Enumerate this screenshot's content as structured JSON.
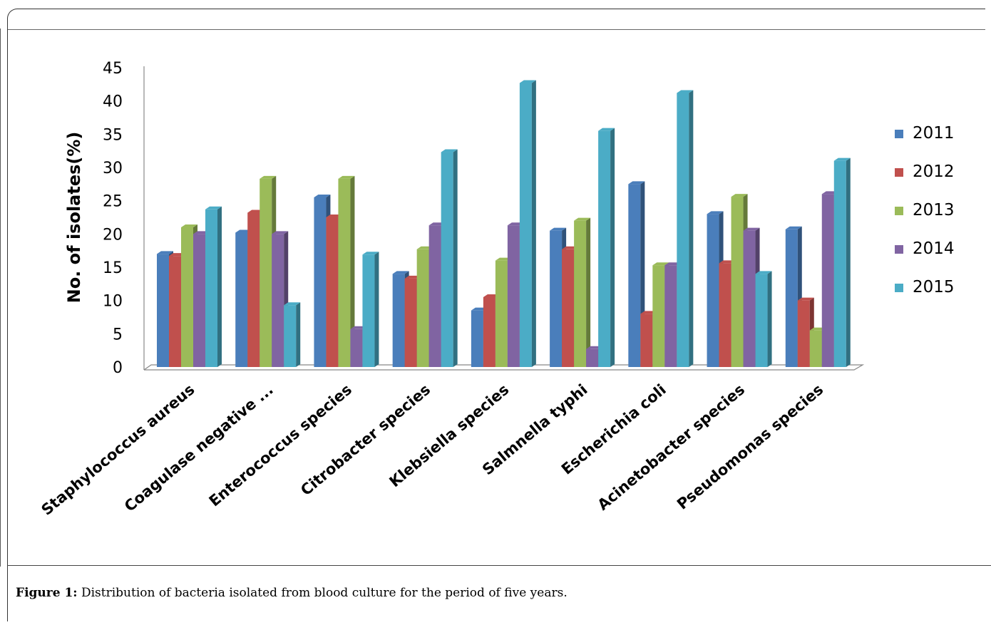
{
  "caption": {
    "label": "Figure 1:",
    "text": " Distribution of bacteria isolated from blood culture for the period of five years."
  },
  "chart_data": {
    "type": "bar",
    "title": "",
    "xlabel": "",
    "ylabel": "No. of isolates(%)",
    "ylim": [
      0,
      45
    ],
    "yticks": [
      "0",
      "5",
      "10",
      "15",
      "20",
      "25",
      "30",
      "35",
      "40",
      "45"
    ],
    "legend_position": "right",
    "categories": [
      "Staphylococcus aureus",
      "Coagulase negative ...",
      "Enterococcus species",
      "Citrobacter species",
      "Klebsiella species",
      "Salmnella typhi",
      "Escherichia coli",
      "Acinetobacter species",
      "Pseudomonas species"
    ],
    "series": [
      {
        "name": "2011",
        "color": "#4a7ebb",
        "values": [
          17,
          20.2,
          25.5,
          14,
          8.5,
          20.5,
          27.5,
          23,
          20.7
        ]
      },
      {
        "name": "2012",
        "color": "#c0504d",
        "values": [
          16.7,
          23.2,
          22.5,
          13.3,
          10.5,
          17.7,
          8,
          15.6,
          10
        ]
      },
      {
        "name": "2013",
        "color": "#9bbb59",
        "values": [
          21,
          28.3,
          28.3,
          17.7,
          16,
          22,
          15.3,
          25.6,
          5.5
        ]
      },
      {
        "name": "2014",
        "color": "#8064a2",
        "values": [
          20,
          20,
          5.7,
          21.3,
          21.3,
          2.7,
          15.3,
          20.5,
          26
        ]
      },
      {
        "name": "2015",
        "color": "#4bacc6",
        "values": [
          23.7,
          9.3,
          16.9,
          32.3,
          42.7,
          35.5,
          41.2,
          14,
          31
        ]
      }
    ]
  }
}
